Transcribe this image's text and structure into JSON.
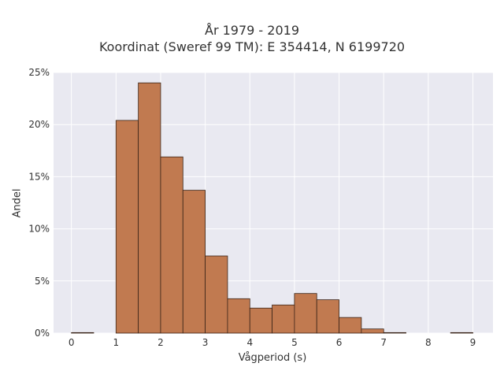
{
  "chart_data": {
    "type": "bar",
    "title": "År 1979 - 2019",
    "subtitle": "Koordinat (Sweref 99 TM): E 354414, N 6199720",
    "xlabel": "Vågperiod (s)",
    "ylabel": "Andel",
    "bin_width": 0.5,
    "bins_start": [
      0,
      0.5,
      1,
      1.5,
      2,
      2.5,
      3,
      3.5,
      4,
      4.5,
      5,
      5.5,
      6,
      6.5,
      7,
      7.5,
      8,
      8.5
    ],
    "values": [
      0.05,
      0,
      20.4,
      24.0,
      16.9,
      13.7,
      7.4,
      3.3,
      2.4,
      2.7,
      3.8,
      3.2,
      1.5,
      0.4,
      0.05,
      0,
      0,
      0.05
    ],
    "xlim": [
      -0.4,
      9.45
    ],
    "ylim": [
      0,
      25
    ],
    "xticks": [
      "0",
      "1",
      "2",
      "3",
      "4",
      "5",
      "6",
      "7",
      "8",
      "9"
    ],
    "yticks": [
      "0%",
      "5%",
      "10%",
      "15%",
      "20%",
      "25%"
    ],
    "grid": true,
    "bar_color": "#c17a50",
    "bar_edge_color": "#3a2418",
    "plot_bg_color": "#e9e9f1"
  }
}
